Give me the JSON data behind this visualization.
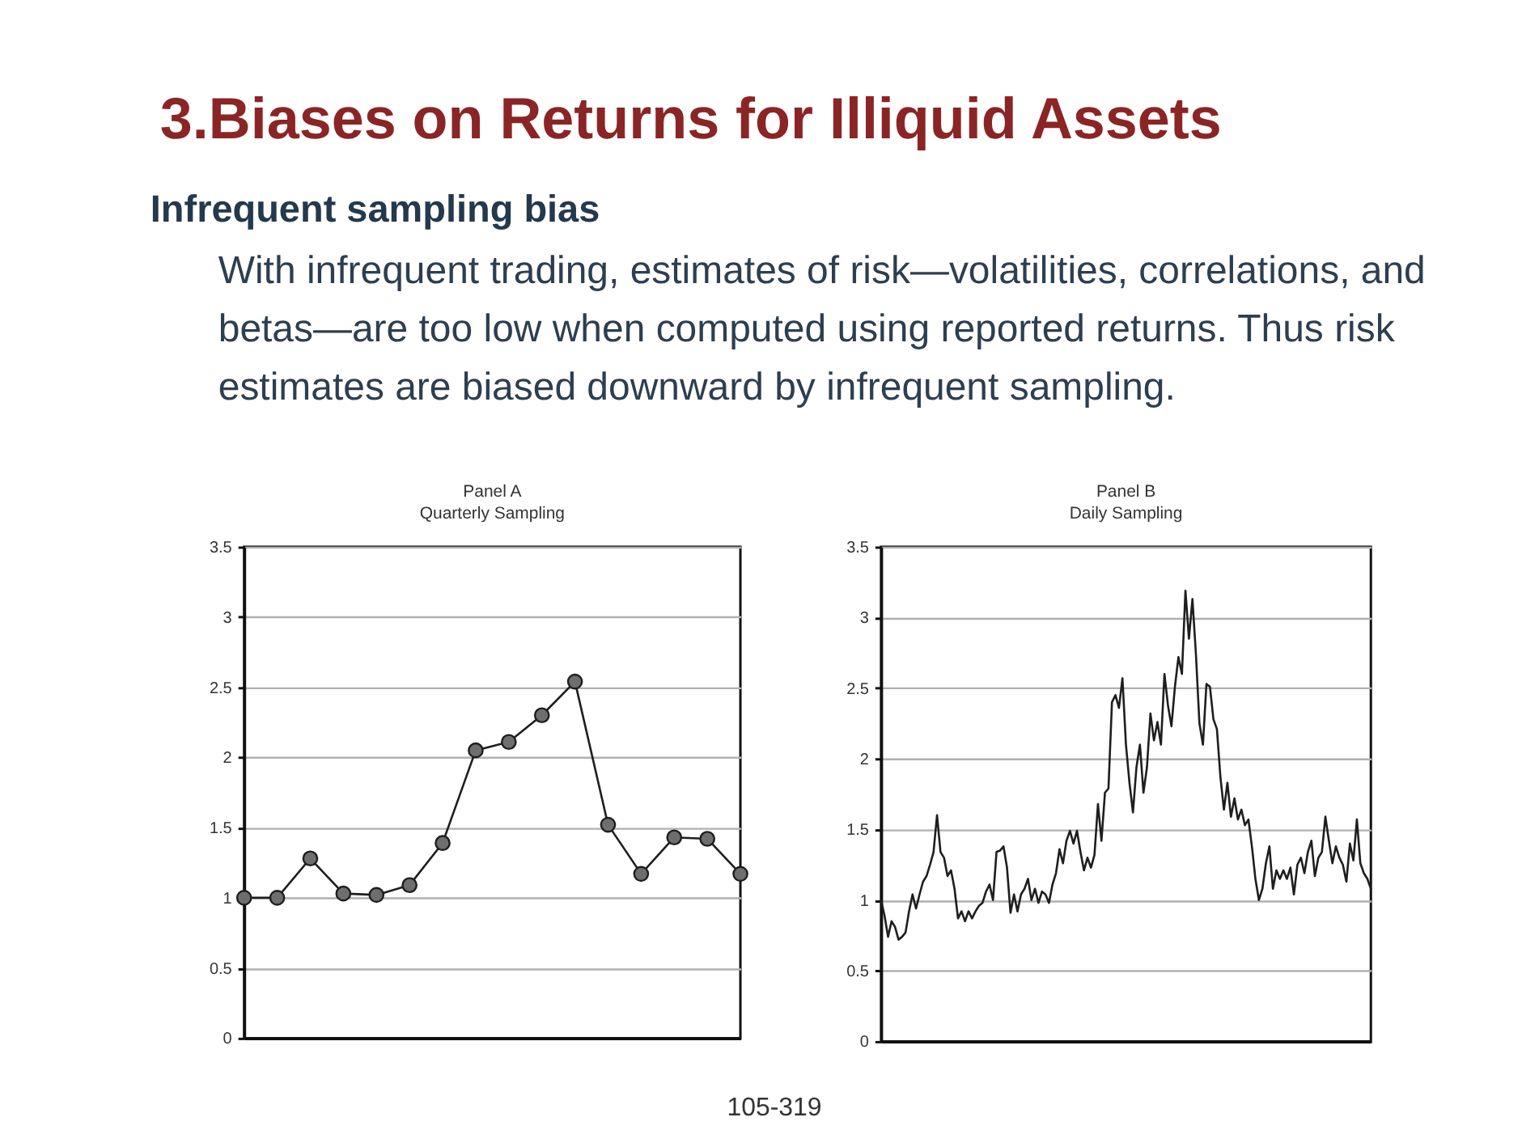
{
  "chart_data": [
    {
      "type": "line",
      "title": "Panel A",
      "subtitle": "Quarterly Sampling",
      "categories": [
        null,
        null,
        null,
        null,
        null,
        null,
        null,
        null,
        null,
        null,
        null,
        null,
        null,
        null,
        null,
        null
      ],
      "series": [
        {
          "color": "#1e1e1e",
          "values": [
            1.0,
            1.0,
            1.28,
            1.03,
            1.02,
            1.09,
            1.39,
            2.05,
            2.11,
            2.3,
            2.54,
            1.52,
            1.17,
            1.43,
            1.42,
            1.17
          ]
        }
      ],
      "ylim": [
        0,
        3.5
      ],
      "yticks": [
        0,
        0.5,
        1,
        1.5,
        2,
        2.5,
        3,
        3.5
      ],
      "grid": "y",
      "tick_labels": "y",
      "marker": "circle",
      "line_style": "solid"
    },
    {
      "type": "line",
      "title": "Panel B",
      "subtitle": "Daily Sampling",
      "categories": [
        null,
        null,
        null,
        null,
        null,
        null,
        null,
        null,
        null,
        null,
        null,
        null,
        null,
        null,
        null,
        null,
        null,
        null,
        null,
        null,
        null,
        null,
        null,
        null,
        null,
        null,
        null,
        null,
        null,
        null,
        null,
        null,
        null,
        null,
        null,
        null,
        null,
        null,
        null,
        null,
        null,
        null,
        null,
        null,
        null,
        null,
        null,
        null,
        null,
        null,
        null,
        null,
        null,
        null,
        null,
        null,
        null,
        null,
        null,
        null,
        null,
        null,
        null,
        null,
        null,
        null,
        null,
        null,
        null,
        null,
        null,
        null,
        null,
        null,
        null,
        null,
        null,
        null,
        null,
        null,
        null,
        null,
        null,
        null,
        null,
        null,
        null,
        null,
        null,
        null,
        null,
        null,
        null,
        null,
        null,
        null,
        null,
        null,
        null,
        null,
        null,
        null,
        null,
        null,
        null,
        null,
        null,
        null,
        null,
        null,
        null,
        null,
        null,
        null,
        null,
        null,
        null,
        null,
        null,
        null,
        null,
        null,
        null,
        null,
        null,
        null,
        null,
        null,
        null,
        null,
        null,
        null,
        null,
        null,
        null,
        null,
        null,
        null,
        null,
        null,
        null
      ],
      "series": [
        {
          "color": "#1e1e1e",
          "values": [
            1.0,
            0.89,
            0.74,
            0.85,
            0.81,
            0.72,
            0.74,
            0.77,
            0.92,
            1.04,
            0.94,
            1.04,
            1.13,
            1.17,
            1.25,
            1.34,
            1.6,
            1.34,
            1.3,
            1.17,
            1.21,
            1.08,
            0.87,
            0.92,
            0.85,
            0.92,
            0.87,
            0.92,
            0.96,
            0.98,
            1.06,
            1.11,
            1.0,
            1.34,
            1.35,
            1.38,
            1.23,
            0.91,
            1.04,
            0.92,
            1.04,
            1.08,
            1.15,
            1.0,
            1.08,
            0.98,
            1.06,
            1.04,
            0.98,
            1.11,
            1.19,
            1.36,
            1.26,
            1.42,
            1.49,
            1.4,
            1.49,
            1.34,
            1.21,
            1.3,
            1.23,
            1.32,
            1.68,
            1.42,
            1.76,
            1.79,
            2.4,
            2.45,
            2.36,
            2.57,
            2.1,
            1.83,
            1.62,
            1.94,
            2.1,
            1.76,
            1.94,
            2.32,
            2.13,
            2.26,
            2.1,
            2.6,
            2.38,
            2.23,
            2.51,
            2.72,
            2.6,
            3.19,
            2.85,
            3.13,
            2.74,
            2.25,
            2.1,
            2.53,
            2.51,
            2.28,
            2.21,
            1.87,
            1.64,
            1.83,
            1.59,
            1.72,
            1.57,
            1.64,
            1.53,
            1.57,
            1.38,
            1.15,
            1.0,
            1.08,
            1.26,
            1.38,
            1.08,
            1.21,
            1.15,
            1.21,
            1.15,
            1.23,
            1.04,
            1.25,
            1.3,
            1.19,
            1.34,
            1.42,
            1.17,
            1.3,
            1.34,
            1.59,
            1.42,
            1.26,
            1.38,
            1.3,
            1.25,
            1.13,
            1.4,
            1.28,
            1.57,
            1.26,
            1.19,
            1.15,
            1.08
          ]
        }
      ],
      "ylim": [
        0,
        3.5
      ],
      "yticks": [
        0,
        0.5,
        1,
        1.5,
        2,
        2.5,
        3,
        3.5
      ],
      "grid": "y",
      "tick_labels": "y",
      "line_style": "solid"
    },
    {
      "type": "other",
      "title": "3.Biases on Returns for Illiquid Assets",
      "subtitle": "Infrequent sampling bias",
      "annotations": [
        "With infrequent trading, estimates of risk—volatilities, correlations, and betas—are too low when computed using reported returns. Thus risk estimates are biased downward by infrequent sampling.",
        "105-319"
      ]
    }
  ]
}
